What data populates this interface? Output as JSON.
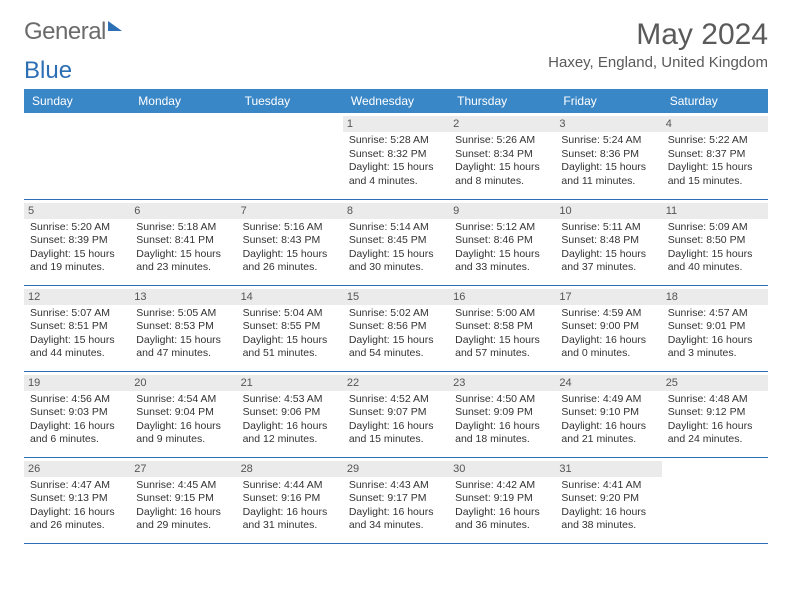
{
  "brand": {
    "text1": "General",
    "text2": "Blue"
  },
  "title": "May 2024",
  "location": "Haxey, England, United Kingdom",
  "colors": {
    "header_bg": "#3a87c7",
    "header_text": "#ffffff",
    "rule": "#2d6fb5",
    "daynum_bg": "#ebebeb",
    "text": "#333333",
    "brand_gray": "#6b6b6b",
    "brand_blue": "#2d6fb5"
  },
  "weekdays": [
    "Sunday",
    "Monday",
    "Tuesday",
    "Wednesday",
    "Thursday",
    "Friday",
    "Saturday"
  ],
  "weeks": [
    [
      null,
      null,
      null,
      {
        "n": "1",
        "sunrise": "5:28 AM",
        "sunset": "8:32 PM",
        "daylight": "15 hours and 4 minutes."
      },
      {
        "n": "2",
        "sunrise": "5:26 AM",
        "sunset": "8:34 PM",
        "daylight": "15 hours and 8 minutes."
      },
      {
        "n": "3",
        "sunrise": "5:24 AM",
        "sunset": "8:36 PM",
        "daylight": "15 hours and 11 minutes."
      },
      {
        "n": "4",
        "sunrise": "5:22 AM",
        "sunset": "8:37 PM",
        "daylight": "15 hours and 15 minutes."
      }
    ],
    [
      {
        "n": "5",
        "sunrise": "5:20 AM",
        "sunset": "8:39 PM",
        "daylight": "15 hours and 19 minutes."
      },
      {
        "n": "6",
        "sunrise": "5:18 AM",
        "sunset": "8:41 PM",
        "daylight": "15 hours and 23 minutes."
      },
      {
        "n": "7",
        "sunrise": "5:16 AM",
        "sunset": "8:43 PM",
        "daylight": "15 hours and 26 minutes."
      },
      {
        "n": "8",
        "sunrise": "5:14 AM",
        "sunset": "8:45 PM",
        "daylight": "15 hours and 30 minutes."
      },
      {
        "n": "9",
        "sunrise": "5:12 AM",
        "sunset": "8:46 PM",
        "daylight": "15 hours and 33 minutes."
      },
      {
        "n": "10",
        "sunrise": "5:11 AM",
        "sunset": "8:48 PM",
        "daylight": "15 hours and 37 minutes."
      },
      {
        "n": "11",
        "sunrise": "5:09 AM",
        "sunset": "8:50 PM",
        "daylight": "15 hours and 40 minutes."
      }
    ],
    [
      {
        "n": "12",
        "sunrise": "5:07 AM",
        "sunset": "8:51 PM",
        "daylight": "15 hours and 44 minutes."
      },
      {
        "n": "13",
        "sunrise": "5:05 AM",
        "sunset": "8:53 PM",
        "daylight": "15 hours and 47 minutes."
      },
      {
        "n": "14",
        "sunrise": "5:04 AM",
        "sunset": "8:55 PM",
        "daylight": "15 hours and 51 minutes."
      },
      {
        "n": "15",
        "sunrise": "5:02 AM",
        "sunset": "8:56 PM",
        "daylight": "15 hours and 54 minutes."
      },
      {
        "n": "16",
        "sunrise": "5:00 AM",
        "sunset": "8:58 PM",
        "daylight": "15 hours and 57 minutes."
      },
      {
        "n": "17",
        "sunrise": "4:59 AM",
        "sunset": "9:00 PM",
        "daylight": "16 hours and 0 minutes."
      },
      {
        "n": "18",
        "sunrise": "4:57 AM",
        "sunset": "9:01 PM",
        "daylight": "16 hours and 3 minutes."
      }
    ],
    [
      {
        "n": "19",
        "sunrise": "4:56 AM",
        "sunset": "9:03 PM",
        "daylight": "16 hours and 6 minutes."
      },
      {
        "n": "20",
        "sunrise": "4:54 AM",
        "sunset": "9:04 PM",
        "daylight": "16 hours and 9 minutes."
      },
      {
        "n": "21",
        "sunrise": "4:53 AM",
        "sunset": "9:06 PM",
        "daylight": "16 hours and 12 minutes."
      },
      {
        "n": "22",
        "sunrise": "4:52 AM",
        "sunset": "9:07 PM",
        "daylight": "16 hours and 15 minutes."
      },
      {
        "n": "23",
        "sunrise": "4:50 AM",
        "sunset": "9:09 PM",
        "daylight": "16 hours and 18 minutes."
      },
      {
        "n": "24",
        "sunrise": "4:49 AM",
        "sunset": "9:10 PM",
        "daylight": "16 hours and 21 minutes."
      },
      {
        "n": "25",
        "sunrise": "4:48 AM",
        "sunset": "9:12 PM",
        "daylight": "16 hours and 24 minutes."
      }
    ],
    [
      {
        "n": "26",
        "sunrise": "4:47 AM",
        "sunset": "9:13 PM",
        "daylight": "16 hours and 26 minutes."
      },
      {
        "n": "27",
        "sunrise": "4:45 AM",
        "sunset": "9:15 PM",
        "daylight": "16 hours and 29 minutes."
      },
      {
        "n": "28",
        "sunrise": "4:44 AM",
        "sunset": "9:16 PM",
        "daylight": "16 hours and 31 minutes."
      },
      {
        "n": "29",
        "sunrise": "4:43 AM",
        "sunset": "9:17 PM",
        "daylight": "16 hours and 34 minutes."
      },
      {
        "n": "30",
        "sunrise": "4:42 AM",
        "sunset": "9:19 PM",
        "daylight": "16 hours and 36 minutes."
      },
      {
        "n": "31",
        "sunrise": "4:41 AM",
        "sunset": "9:20 PM",
        "daylight": "16 hours and 38 minutes."
      },
      null
    ]
  ],
  "labels": {
    "sunrise": "Sunrise:",
    "sunset": "Sunset:",
    "daylight": "Daylight:"
  }
}
